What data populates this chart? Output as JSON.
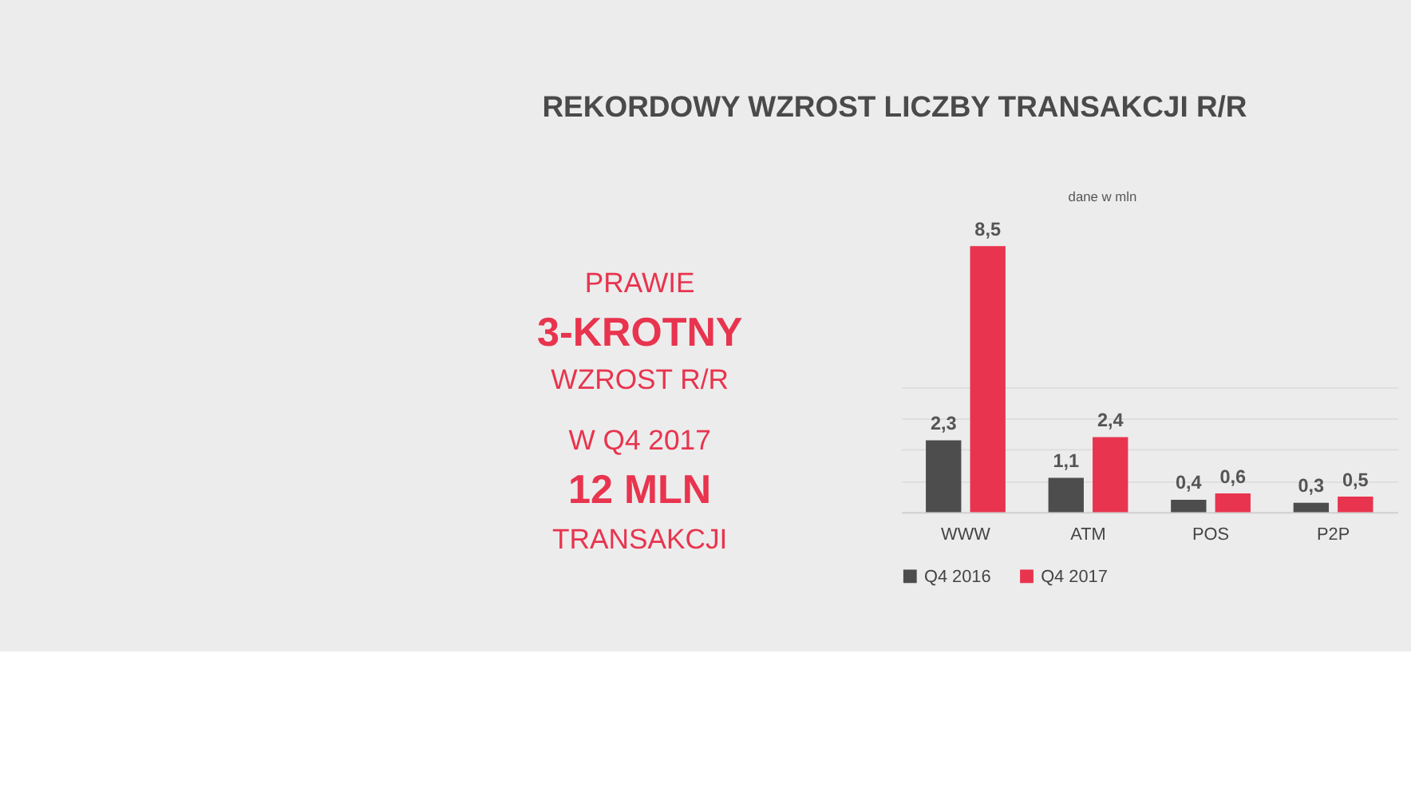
{
  "chart_data": {
    "type": "bar",
    "title": "REKORDOWY WZROST LICZBY TRANSAKCJI R/R",
    "categories": [
      "WWW",
      "ATM",
      "POS",
      "P2P"
    ],
    "series": [
      {
        "name": "Q4 2016",
        "color": "#4d4d4d",
        "values": [
          2.3,
          1.1,
          0.4,
          0.3
        ],
        "value_labels": [
          "2,3",
          "1,1",
          "0,4",
          "0,3"
        ]
      },
      {
        "name": "Q4 2017",
        "color": "#e8344e",
        "values": [
          8.5,
          2.4,
          0.6,
          0.5
        ],
        "value_labels": [
          "8,5",
          "2,4",
          "0,6",
          "0,5"
        ]
      }
    ],
    "yticks": [
      {
        "value": 1,
        "label": null
      },
      {
        "value": 2,
        "label": null
      },
      {
        "value": 3,
        "label": null
      },
      {
        "value": 4,
        "label": null
      }
    ],
    "grid": "y",
    "tick_labels": "x",
    "legend": "bottom",
    "annotations": [
      "PRAWIE",
      "3-KROTNY",
      "WZROST R/R",
      "W Q4 2017",
      "12 MLN",
      "TRANSAKCJI",
      "dane w mln"
    ]
  }
}
